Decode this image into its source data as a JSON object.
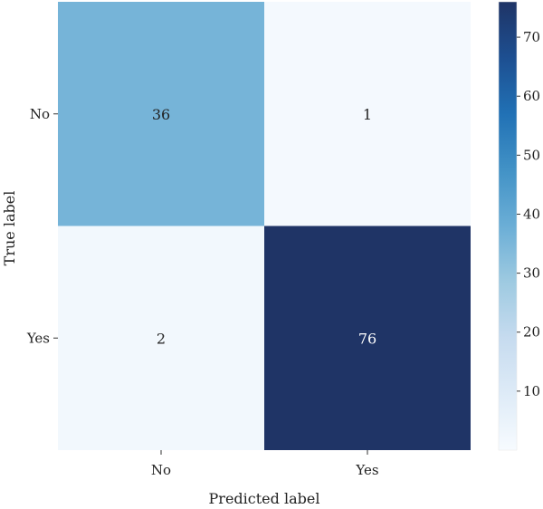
{
  "chart_data": {
    "type": "heatmap",
    "title": "",
    "xlabel": "Predicted label",
    "ylabel": "True label",
    "x_categories": [
      "No",
      "Yes"
    ],
    "y_categories": [
      "No",
      "Yes"
    ],
    "values": [
      [
        36,
        1
      ],
      [
        2,
        76
      ]
    ],
    "colormap": "Blues",
    "color_low": "#f7fbff",
    "color_high": "#1f3466",
    "colorbar": {
      "min": 0,
      "max": 76,
      "ticks": [
        10,
        20,
        30,
        40,
        50,
        60,
        70
      ],
      "tick_labels": [
        "10",
        "20",
        "30",
        "40",
        "50",
        "60",
        "70"
      ]
    }
  }
}
